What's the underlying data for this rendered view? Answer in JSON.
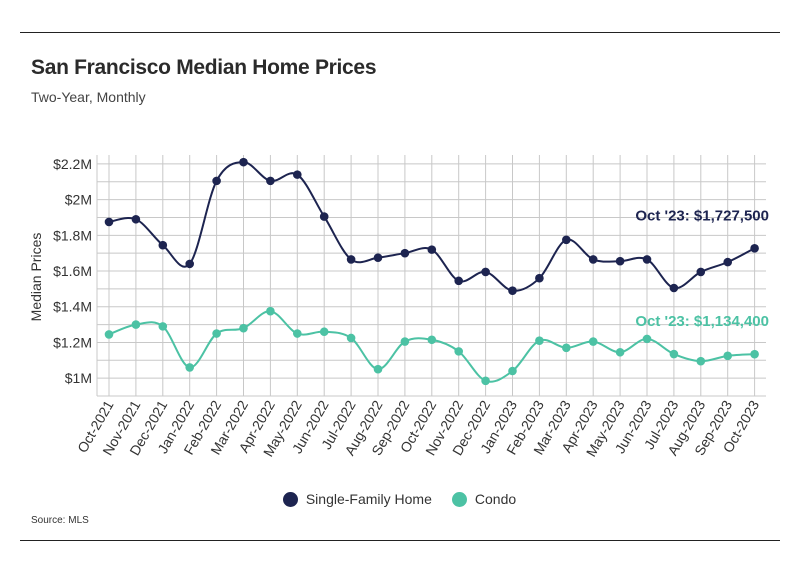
{
  "header": {
    "title": "San Francisco Median Home Prices",
    "subtitle": "Two-Year, Monthly"
  },
  "source": "Source:  MLS",
  "colors": {
    "sfh": "#1d2450",
    "condo": "#4cc2a4",
    "grid": "#c8c8c8"
  },
  "chart_data": {
    "type": "line",
    "title": "San Francisco Median Home Prices",
    "subtitle": "Two-Year, Monthly",
    "xlabel": "",
    "ylabel": "Median Prices",
    "ylim": [
      900000,
      2250000
    ],
    "grid": true,
    "yticks": [
      1000000,
      1200000,
      1400000,
      1600000,
      1800000,
      2000000,
      2200000
    ],
    "ytick_labels": [
      "$1M",
      "$1.2M",
      "$1.4M",
      "$1.6M",
      "$1.8M",
      "$2M",
      "$2.2M"
    ],
    "categories": [
      "Oct-2021",
      "Nov-2021",
      "Dec-2021",
      "Jan-2022",
      "Feb-2022",
      "Mar-2022",
      "Apr-2022",
      "May-2022",
      "Jun-2022",
      "Jul-2022",
      "Aug-2022",
      "Sep-2022",
      "Oct-2022",
      "Nov-2022",
      "Dec-2022",
      "Jan-2023",
      "Feb-2023",
      "Mar-2023",
      "Apr-2023",
      "May-2023",
      "Jun-2023",
      "Jul-2023",
      "Aug-2023",
      "Sep-2023",
      "Oct-2023"
    ],
    "series": [
      {
        "name": "Single-Family Home",
        "color": "#1d2450",
        "values": [
          1875000,
          1890000,
          1745000,
          1640000,
          2105000,
          2210000,
          2105000,
          2140000,
          1905000,
          1665000,
          1675000,
          1700000,
          1720000,
          1545000,
          1595000,
          1490000,
          1560000,
          1775000,
          1665000,
          1655000,
          1665000,
          1505000,
          1595000,
          1650000,
          1727500
        ]
      },
      {
        "name": "Condo",
        "color": "#4cc2a4",
        "values": [
          1245000,
          1300000,
          1290000,
          1060000,
          1250000,
          1280000,
          1375000,
          1250000,
          1260000,
          1225000,
          1050000,
          1205000,
          1215000,
          1150000,
          985000,
          1040000,
          1210000,
          1170000,
          1205000,
          1145000,
          1220000,
          1135000,
          1095000,
          1125000,
          1134400
        ]
      }
    ],
    "annotations": [
      {
        "text": "Oct '23: $1,727,500",
        "series": "Single-Family Home"
      },
      {
        "text": "Oct '23: $1,134,400",
        "series": "Condo"
      }
    ],
    "legend": {
      "position": "bottom-center"
    }
  }
}
